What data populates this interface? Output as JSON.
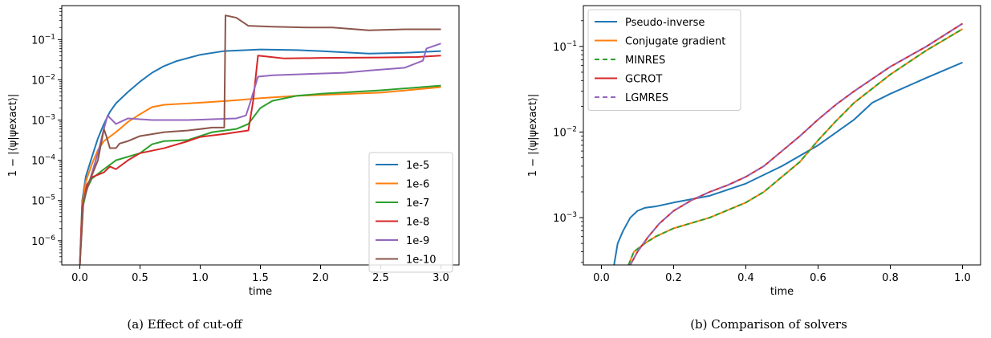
{
  "figures": [
    {
      "caption": "(a) Effect of cut-off",
      "chart_data": {
        "type": "line",
        "xlabel": "time",
        "ylabel": "1 − |⟨ψ|ψexact⟩|",
        "yscale": "log",
        "xlim": [
          -0.15,
          3.15
        ],
        "ylim": [
          2.5e-07,
          0.7
        ],
        "xticks": [
          0.0,
          0.5,
          1.0,
          1.5,
          2.0,
          2.5,
          3.0
        ],
        "xtick_labels": [
          "0.0",
          "0.5",
          "1.0",
          "1.5",
          "2.0",
          "2.5",
          "3.0"
        ],
        "yticks": [
          1e-06,
          1e-05,
          0.0001,
          0.001,
          0.01,
          0.1
        ],
        "ytick_labels": [
          "10",
          "10",
          "10",
          "10",
          "10",
          "10"
        ],
        "ytick_exps": [
          "−6",
          "−5",
          "−4",
          "−3",
          "−2",
          "−1"
        ],
        "legend_position": "lower-right",
        "series": [
          {
            "name": "1e-5",
            "color": "#1f77b4",
            "dash": "",
            "points": [
              [
                0.0,
                2.5e-07
              ],
              [
                0.02,
                1e-05
              ],
              [
                0.05,
                4e-05
              ],
              [
                0.1,
                0.00012
              ],
              [
                0.15,
                0.00035
              ],
              [
                0.2,
                0.0008
              ],
              [
                0.25,
                0.0016
              ],
              [
                0.3,
                0.0026
              ],
              [
                0.4,
                0.005
              ],
              [
                0.5,
                0.009
              ],
              [
                0.6,
                0.015
              ],
              [
                0.7,
                0.022
              ],
              [
                0.8,
                0.029
              ],
              [
                1.0,
                0.042
              ],
              [
                1.2,
                0.052
              ],
              [
                1.5,
                0.057
              ],
              [
                1.8,
                0.055
              ],
              [
                2.0,
                0.052
              ],
              [
                2.4,
                0.045
              ],
              [
                2.7,
                0.047
              ],
              [
                3.0,
                0.052
              ]
            ]
          },
          {
            "name": "1e-6",
            "color": "#ff7f0e",
            "dash": "",
            "points": [
              [
                0.0,
                2.5e-07
              ],
              [
                0.02,
                8e-06
              ],
              [
                0.05,
                3e-05
              ],
              [
                0.1,
                8e-05
              ],
              [
                0.15,
                0.00018
              ],
              [
                0.2,
                0.0003
              ],
              [
                0.3,
                0.0005
              ],
              [
                0.4,
                0.0009
              ],
              [
                0.5,
                0.0014
              ],
              [
                0.6,
                0.0021
              ],
              [
                0.7,
                0.0024
              ],
              [
                1.0,
                0.0027
              ],
              [
                1.3,
                0.0031
              ],
              [
                1.5,
                0.0035
              ],
              [
                1.8,
                0.004
              ],
              [
                2.0,
                0.0042
              ],
              [
                2.5,
                0.0048
              ],
              [
                3.0,
                0.0066
              ]
            ]
          },
          {
            "name": "1e-7",
            "color": "#2ca02c",
            "dash": "",
            "points": [
              [
                0.0,
                2.5e-07
              ],
              [
                0.02,
                6e-06
              ],
              [
                0.06,
                2e-05
              ],
              [
                0.1,
                3.5e-05
              ],
              [
                0.2,
                6e-05
              ],
              [
                0.3,
                0.0001
              ],
              [
                0.5,
                0.00015
              ],
              [
                0.6,
                0.00025
              ],
              [
                0.7,
                0.0003
              ],
              [
                0.9,
                0.00032
              ],
              [
                1.1,
                0.0005
              ],
              [
                1.3,
                0.0006
              ],
              [
                1.4,
                0.0008
              ],
              [
                1.5,
                0.002
              ],
              [
                1.6,
                0.003
              ],
              [
                1.8,
                0.004
              ],
              [
                2.0,
                0.0045
              ],
              [
                2.5,
                0.0055
              ],
              [
                3.0,
                0.0072
              ]
            ]
          },
          {
            "name": "1e-8",
            "color": "#d62728",
            "dash": "",
            "points": [
              [
                0.0,
                2.5e-07
              ],
              [
                0.02,
                7e-06
              ],
              [
                0.06,
                2.5e-05
              ],
              [
                0.1,
                3.8e-05
              ],
              [
                0.2,
                5e-05
              ],
              [
                0.25,
                7e-05
              ],
              [
                0.3,
                6e-05
              ],
              [
                0.4,
                0.0001
              ],
              [
                0.5,
                0.00015
              ],
              [
                0.7,
                0.0002
              ],
              [
                0.9,
                0.0003
              ],
              [
                1.0,
                0.00038
              ],
              [
                1.2,
                0.00045
              ],
              [
                1.4,
                0.00055
              ],
              [
                1.44,
                0.003
              ],
              [
                1.48,
                0.04
              ],
              [
                1.55,
                0.038
              ],
              [
                1.7,
                0.034
              ],
              [
                2.0,
                0.035
              ],
              [
                2.5,
                0.036
              ],
              [
                2.8,
                0.037
              ],
              [
                3.0,
                0.04
              ]
            ]
          },
          {
            "name": "1e-9",
            "color": "#9467bd",
            "dash": "",
            "points": [
              [
                0.0,
                2.5e-07
              ],
              [
                0.03,
                1e-05
              ],
              [
                0.08,
                3e-05
              ],
              [
                0.15,
                0.00015
              ],
              [
                0.2,
                0.0006
              ],
              [
                0.23,
                0.0013
              ],
              [
                0.3,
                0.0008
              ],
              [
                0.4,
                0.0011
              ],
              [
                0.6,
                0.001
              ],
              [
                0.9,
                0.001
              ],
              [
                1.1,
                0.00105
              ],
              [
                1.3,
                0.0011
              ],
              [
                1.38,
                0.0013
              ],
              [
                1.42,
                0.003
              ],
              [
                1.48,
                0.012
              ],
              [
                1.6,
                0.013
              ],
              [
                1.9,
                0.014
              ],
              [
                2.2,
                0.015
              ],
              [
                2.4,
                0.017
              ],
              [
                2.7,
                0.02
              ],
              [
                2.85,
                0.03
              ],
              [
                2.88,
                0.06
              ],
              [
                3.0,
                0.08
              ]
            ]
          },
          {
            "name": "1e-10",
            "color": "#8c564b",
            "dash": "",
            "points": [
              [
                0.0,
                2.5e-07
              ],
              [
                0.03,
                1e-05
              ],
              [
                0.08,
                3e-05
              ],
              [
                0.15,
                0.0001
              ],
              [
                0.2,
                0.0006
              ],
              [
                0.22,
                0.0004
              ],
              [
                0.25,
                0.0002
              ],
              [
                0.3,
                0.0002
              ],
              [
                0.33,
                0.00026
              ],
              [
                0.4,
                0.0003
              ],
              [
                0.5,
                0.0004
              ],
              [
                0.7,
                0.0005
              ],
              [
                0.9,
                0.00055
              ],
              [
                1.1,
                0.00065
              ],
              [
                1.2,
                0.00065
              ],
              [
                1.21,
                0.4
              ],
              [
                1.3,
                0.35
              ],
              [
                1.4,
                0.22
              ],
              [
                1.6,
                0.21
              ],
              [
                1.9,
                0.2
              ],
              [
                2.1,
                0.2
              ],
              [
                2.4,
                0.17
              ],
              [
                2.7,
                0.18
              ],
              [
                3.0,
                0.18
              ]
            ]
          }
        ]
      }
    },
    {
      "caption": "(b) Comparison of solvers",
      "chart_data": {
        "type": "line",
        "xlabel": "time",
        "ylabel": "1 − |⟨ψ|ψexact⟩|",
        "yscale": "log",
        "xlim": [
          -0.05,
          1.05
        ],
        "ylim": [
          0.00028,
          0.3
        ],
        "xticks": [
          0.0,
          0.2,
          0.4,
          0.6,
          0.8,
          1.0
        ],
        "xtick_labels": [
          "0.0",
          "0.2",
          "0.4",
          "0.6",
          "0.8",
          "1.0"
        ],
        "yticks": [
          0.001,
          0.01,
          0.1
        ],
        "ytick_labels": [
          "10",
          "10",
          "10"
        ],
        "ytick_exps": [
          "−3",
          "−2",
          "−1"
        ],
        "legend_position": "upper-left",
        "series": [
          {
            "name": "Pseudo-inverse",
            "color": "#1f77b4",
            "dash": "",
            "points": [
              [
                0.035,
                0.00028
              ],
              [
                0.045,
                0.0005
              ],
              [
                0.06,
                0.0007
              ],
              [
                0.08,
                0.001
              ],
              [
                0.1,
                0.0012
              ],
              [
                0.12,
                0.0013
              ],
              [
                0.15,
                0.00135
              ],
              [
                0.2,
                0.0015
              ],
              [
                0.3,
                0.0018
              ],
              [
                0.4,
                0.0025
              ],
              [
                0.5,
                0.004
              ],
              [
                0.6,
                0.007
              ],
              [
                0.7,
                0.014
              ],
              [
                0.75,
                0.022
              ],
              [
                0.8,
                0.028
              ],
              [
                0.9,
                0.043
              ],
              [
                1.0,
                0.065
              ]
            ]
          },
          {
            "name": "Conjugate gradient",
            "color": "#ff7f0e",
            "dash": "",
            "points": [
              [
                0.075,
                0.00028
              ],
              [
                0.09,
                0.0004
              ],
              [
                0.12,
                0.0005
              ],
              [
                0.15,
                0.0006
              ],
              [
                0.2,
                0.00075
              ],
              [
                0.3,
                0.001
              ],
              [
                0.4,
                0.0015
              ],
              [
                0.45,
                0.002
              ],
              [
                0.5,
                0.003
              ],
              [
                0.55,
                0.0045
              ],
              [
                0.6,
                0.008
              ],
              [
                0.65,
                0.0135
              ],
              [
                0.7,
                0.022
              ],
              [
                0.8,
                0.047
              ],
              [
                0.9,
                0.09
              ],
              [
                1.0,
                0.16
              ]
            ]
          },
          {
            "name": "MINRES",
            "color": "#2ca02c",
            "dash": "6,4",
            "points": [
              [
                0.075,
                0.00028
              ],
              [
                0.09,
                0.0004
              ],
              [
                0.12,
                0.0005
              ],
              [
                0.15,
                0.0006
              ],
              [
                0.2,
                0.00075
              ],
              [
                0.3,
                0.001
              ],
              [
                0.4,
                0.0015
              ],
              [
                0.45,
                0.002
              ],
              [
                0.5,
                0.003
              ],
              [
                0.55,
                0.0045
              ],
              [
                0.6,
                0.008
              ],
              [
                0.65,
                0.0135
              ],
              [
                0.7,
                0.022
              ],
              [
                0.8,
                0.047
              ],
              [
                0.9,
                0.09
              ],
              [
                1.0,
                0.16
              ]
            ]
          },
          {
            "name": "GCROT",
            "color": "#d62728",
            "dash": "",
            "points": [
              [
                0.08,
                0.00028
              ],
              [
                0.1,
                0.0004
              ],
              [
                0.13,
                0.0006
              ],
              [
                0.16,
                0.00085
              ],
              [
                0.2,
                0.0012
              ],
              [
                0.25,
                0.0016
              ],
              [
                0.3,
                0.002
              ],
              [
                0.35,
                0.0024
              ],
              [
                0.4,
                0.003
              ],
              [
                0.45,
                0.004
              ],
              [
                0.5,
                0.006
              ],
              [
                0.55,
                0.009
              ],
              [
                0.6,
                0.014
              ],
              [
                0.65,
                0.021
              ],
              [
                0.7,
                0.03
              ],
              [
                0.8,
                0.058
              ],
              [
                0.9,
                0.1
              ],
              [
                1.0,
                0.185
              ]
            ]
          },
          {
            "name": "LGMRES",
            "color": "#9467bd",
            "dash": "6,4",
            "points": [
              [
                0.08,
                0.00028
              ],
              [
                0.1,
                0.0004
              ],
              [
                0.13,
                0.0006
              ],
              [
                0.16,
                0.00085
              ],
              [
                0.2,
                0.0012
              ],
              [
                0.25,
                0.0016
              ],
              [
                0.3,
                0.002
              ],
              [
                0.35,
                0.0024
              ],
              [
                0.4,
                0.003
              ],
              [
                0.45,
                0.004
              ],
              [
                0.5,
                0.006
              ],
              [
                0.55,
                0.009
              ],
              [
                0.6,
                0.014
              ],
              [
                0.65,
                0.021
              ],
              [
                0.7,
                0.03
              ],
              [
                0.8,
                0.058
              ],
              [
                0.9,
                0.1
              ],
              [
                1.0,
                0.185
              ]
            ]
          }
        ]
      }
    }
  ]
}
